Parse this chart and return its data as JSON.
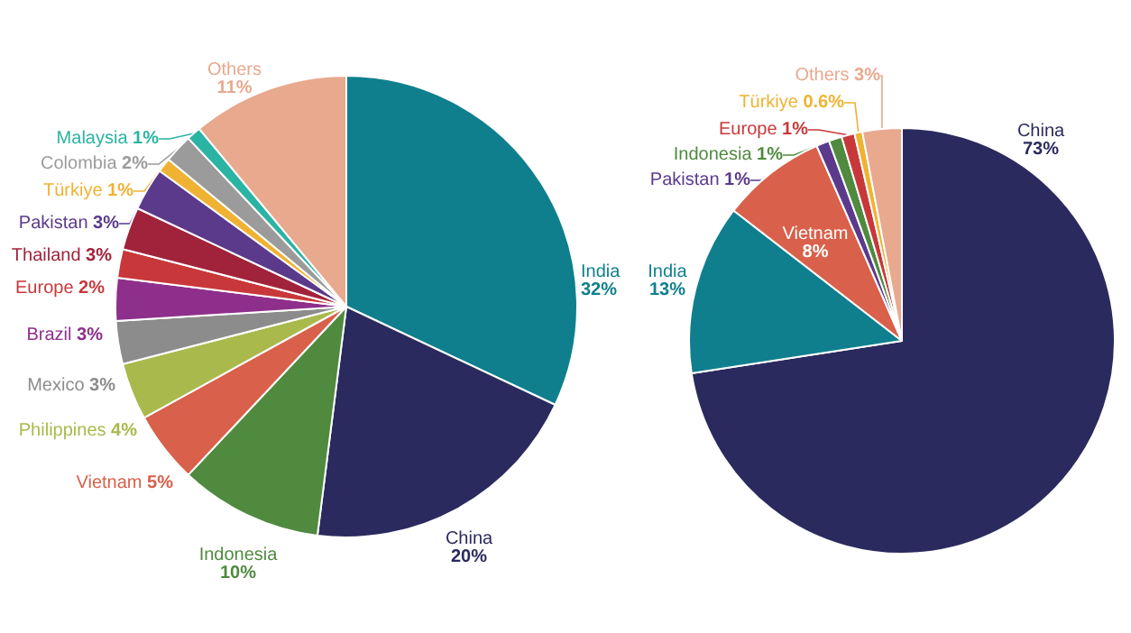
{
  "chart_data": [
    {
      "type": "pie",
      "categories": [
        "India",
        "China",
        "Indonesia",
        "Vietnam",
        "Philippines",
        "Mexico",
        "Brazil",
        "Europe",
        "Thailand",
        "Pakistan",
        "Türkiye",
        "Colombia",
        "Malaysia",
        "Others"
      ],
      "values": [
        32,
        20,
        10,
        5,
        4,
        3,
        3,
        2,
        3,
        3,
        1,
        2,
        1,
        11
      ],
      "value_labels": [
        "32%",
        "20%",
        "10%",
        "5%",
        "4%",
        "3%",
        "3%",
        "2%",
        "3%",
        "3%",
        "1%",
        "2%",
        "1%",
        "11%"
      ],
      "colors": [
        "#0f7f8e",
        "#2b2a5e",
        "#4f8a3f",
        "#d9604a",
        "#a9b94c",
        "#8c8c8c",
        "#8e2f8b",
        "#c8383a",
        "#a1233b",
        "#5b3a8c",
        "#efb232",
        "#9b9b9b",
        "#2bb3a3",
        "#e8a98f"
      ],
      "legend": false
    },
    {
      "type": "pie",
      "categories": [
        "China",
        "India",
        "Vietnam",
        "Pakistan",
        "Indonesia",
        "Europe",
        "Türkiye",
        "Others"
      ],
      "values": [
        73,
        13,
        8,
        1,
        1,
        1,
        0.6,
        3
      ],
      "value_labels": [
        "73%",
        "13%",
        "8%",
        "1%",
        "1%",
        "1%",
        "0.6%",
        "3%"
      ],
      "colors": [
        "#2b2a5e",
        "#0f7f8e",
        "#d9604a",
        "#5b3a8c",
        "#4f8a3f",
        "#c8383a",
        "#efb232",
        "#e8a98f"
      ],
      "legend": false
    }
  ]
}
